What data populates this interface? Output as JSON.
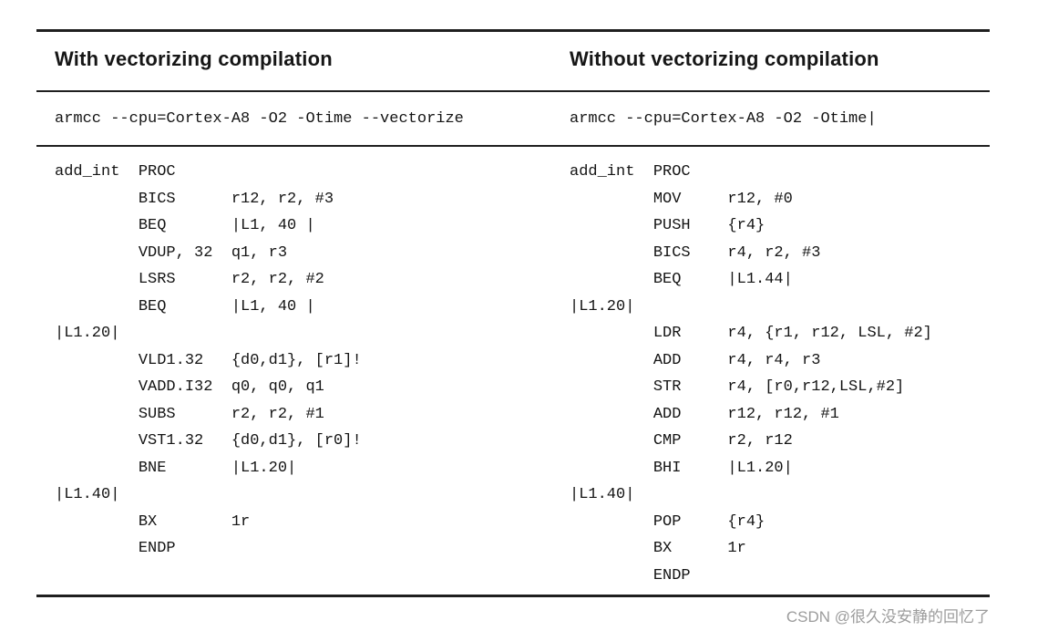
{
  "table": {
    "columns": [
      {
        "header": "With vectorizing compilation",
        "command": "armcc --cpu=Cortex-A8 -O2 -Otime --vectorize",
        "code": [
          {
            "label": "add_int",
            "mn": "PROC",
            "op": ""
          },
          {
            "label": "",
            "mn": "BICS",
            "op": "r12, r2, #3"
          },
          {
            "label": "",
            "mn": "BEQ",
            "op": "|L1, 40 |"
          },
          {
            "label": "",
            "mn": "VDUP, 32",
            "op": "q1, r3"
          },
          {
            "label": "",
            "mn": "LSRS",
            "op": "r2, r2, #2"
          },
          {
            "label": "",
            "mn": "BEQ",
            "op": "|L1, 40 |"
          },
          {
            "label": "|L1.20|",
            "mn": "",
            "op": ""
          },
          {
            "label": "",
            "mn": "VLD1.32",
            "op": "{d0,d1}, [r1]!"
          },
          {
            "label": "",
            "mn": "VADD.I32",
            "op": "q0, q0, q1"
          },
          {
            "label": "",
            "mn": "SUBS",
            "op": "r2, r2, #1"
          },
          {
            "label": "",
            "mn": "VST1.32",
            "op": "{d0,d1}, [r0]!"
          },
          {
            "label": "",
            "mn": "BNE",
            "op": "|L1.20|"
          },
          {
            "label": "|L1.40|",
            "mn": "",
            "op": ""
          },
          {
            "label": "",
            "mn": "BX",
            "op": "1r"
          },
          {
            "label": "",
            "mn": "ENDP",
            "op": ""
          }
        ]
      },
      {
        "header": "Without vectorizing compilation",
        "command": "armcc --cpu=Cortex-A8 -O2 -Otime",
        "cursor": "|",
        "code": [
          {
            "label": "add_int",
            "mn": "PROC",
            "op": ""
          },
          {
            "label": "",
            "mn": "MOV",
            "op": "r12, #0"
          },
          {
            "label": "",
            "mn": "PUSH",
            "op": "{r4}"
          },
          {
            "label": "",
            "mn": "BICS",
            "op": "r4, r2, #3"
          },
          {
            "label": "",
            "mn": "BEQ",
            "op": "|L1.44|"
          },
          {
            "label": "|L1.20|",
            "mn": "",
            "op": ""
          },
          {
            "label": "",
            "mn": "LDR",
            "op": "r4, {r1, r12, LSL, #2]"
          },
          {
            "label": "",
            "mn": "ADD",
            "op": "r4, r4, r3"
          },
          {
            "label": "",
            "mn": "STR",
            "op": "r4, [r0,r12,LSL,#2]"
          },
          {
            "label": "",
            "mn": "ADD",
            "op": "r12, r12, #1"
          },
          {
            "label": "",
            "mn": "CMP",
            "op": "r2, r12"
          },
          {
            "label": "",
            "mn": "BHI",
            "op": "|L1.20|"
          },
          {
            "label": "|L1.40|",
            "mn": "",
            "op": ""
          },
          {
            "label": "",
            "mn": "POP",
            "op": "{r4}"
          },
          {
            "label": "",
            "mn": "BX",
            "op": "1r"
          },
          {
            "label": "",
            "mn": "ENDP",
            "op": ""
          }
        ]
      }
    ]
  },
  "watermark": "CSDN @很久没安静的回忆了"
}
